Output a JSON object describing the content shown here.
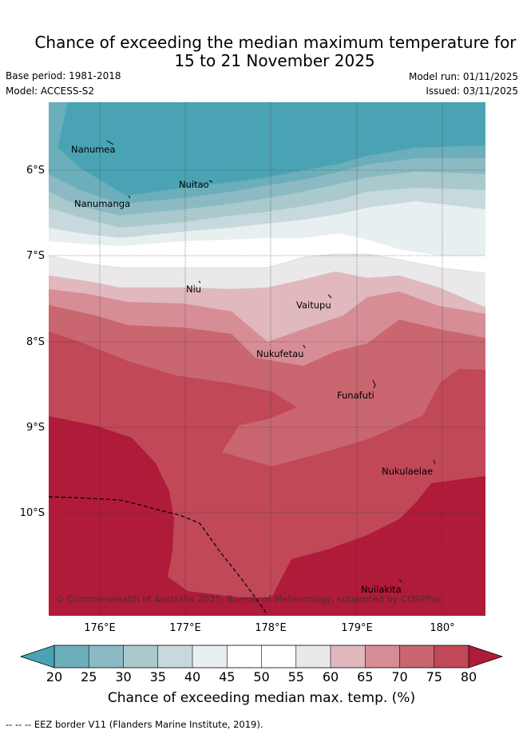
{
  "header": {
    "title_line1": "Chance of exceeding the median maximum temperature for",
    "title_line2": "15 to 21 November 2025",
    "base_period": "Base period: 1981-2018",
    "model": "Model: ACCESS-S2",
    "model_run": "Model run: 01/11/2025",
    "issued": "Issued: 03/11/2025"
  },
  "map": {
    "lat_labels": [
      "6°S",
      "7°S",
      "8°S",
      "9°S",
      "10°S"
    ],
    "lon_labels": [
      "176°E",
      "177°E",
      "178°E",
      "179°E",
      "180°"
    ],
    "islands": [
      "Nanumea",
      "Nuitao",
      "Nanumanga",
      "Niu",
      "Vaitupu",
      "Nukufetau",
      "Funafuti",
      "Nukulaelae",
      "Nuilakita"
    ],
    "copyright": "© Commonwealth of Australia 2025, Bureau of Meteorology, supported by COSPPac"
  },
  "colorbar": {
    "ticks": [
      "20",
      "25",
      "30",
      "35",
      "40",
      "45",
      "50",
      "55",
      "60",
      "65",
      "70",
      "75",
      "80"
    ],
    "colors": [
      "#4aa3b4",
      "#6caeb9",
      "#8bbac5",
      "#a9c9cd",
      "#c8d9dd",
      "#e8eff1",
      "#ffffff",
      "#ffffff",
      "#ebe8ea",
      "#e0b8be",
      "#d68d96",
      "#c9666f",
      "#c04857",
      "#b01b3a"
    ],
    "label": "Chance of exceeding median max. temp. (%)"
  },
  "legend": {
    "eez": "EEZ border V11 (Flanders Marine Institute, 2019)."
  }
}
